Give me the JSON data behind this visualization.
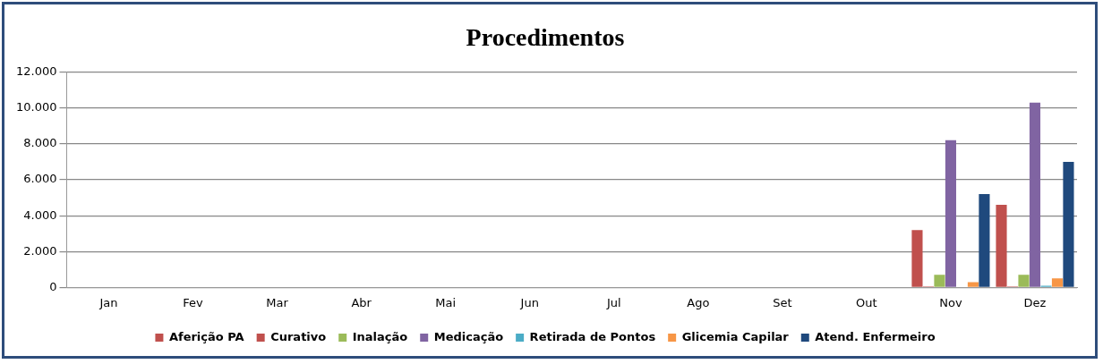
{
  "chart_data": {
    "type": "bar",
    "title": "Procedimentos",
    "categories": [
      "Jan",
      "Fev",
      "Mar",
      "Abr",
      "Mai",
      "Jun",
      "Jul",
      "Ago",
      "Set",
      "Out",
      "Nov",
      "Dez"
    ],
    "series": [
      {
        "name": "Aferição PA",
        "color": "#c0504d",
        "values": [
          null,
          null,
          null,
          null,
          null,
          null,
          null,
          null,
          null,
          null,
          3200,
          4600
        ]
      },
      {
        "name": "Curativo",
        "color": "#c0504d",
        "values": [
          null,
          null,
          null,
          null,
          null,
          null,
          null,
          null,
          null,
          null,
          60,
          60
        ]
      },
      {
        "name": "Inalação",
        "color": "#9bbb59",
        "values": [
          null,
          null,
          null,
          null,
          null,
          null,
          null,
          null,
          null,
          null,
          700,
          700
        ]
      },
      {
        "name": "Medicação",
        "color": "#8064a2",
        "values": [
          null,
          null,
          null,
          null,
          null,
          null,
          null,
          null,
          null,
          null,
          8200,
          10300
        ]
      },
      {
        "name": "Retirada de Pontos",
        "color": "#4bacc6",
        "values": [
          null,
          null,
          null,
          null,
          null,
          null,
          null,
          null,
          null,
          null,
          0,
          100
        ]
      },
      {
        "name": "Glicemia Capilar",
        "color": "#f79646",
        "values": [
          null,
          null,
          null,
          null,
          null,
          null,
          null,
          null,
          null,
          null,
          300,
          500
        ]
      },
      {
        "name": "Atend. Enfermeiro",
        "color": "#1f497d",
        "values": [
          null,
          null,
          null,
          null,
          null,
          null,
          null,
          null,
          null,
          null,
          5200,
          7000
        ]
      }
    ],
    "ylim": [
      0,
      12000
    ],
    "yticks": [
      {
        "value": 0,
        "label": "0"
      },
      {
        "value": 2000,
        "label": "2.000"
      },
      {
        "value": 4000,
        "label": "4.000"
      },
      {
        "value": 6000,
        "label": "6.000"
      },
      {
        "value": 8000,
        "label": "8.000"
      },
      {
        "value": 10000,
        "label": "10.000"
      },
      {
        "value": 12000,
        "label": "12.000"
      }
    ],
    "grid": "y",
    "legend": "bottom"
  }
}
